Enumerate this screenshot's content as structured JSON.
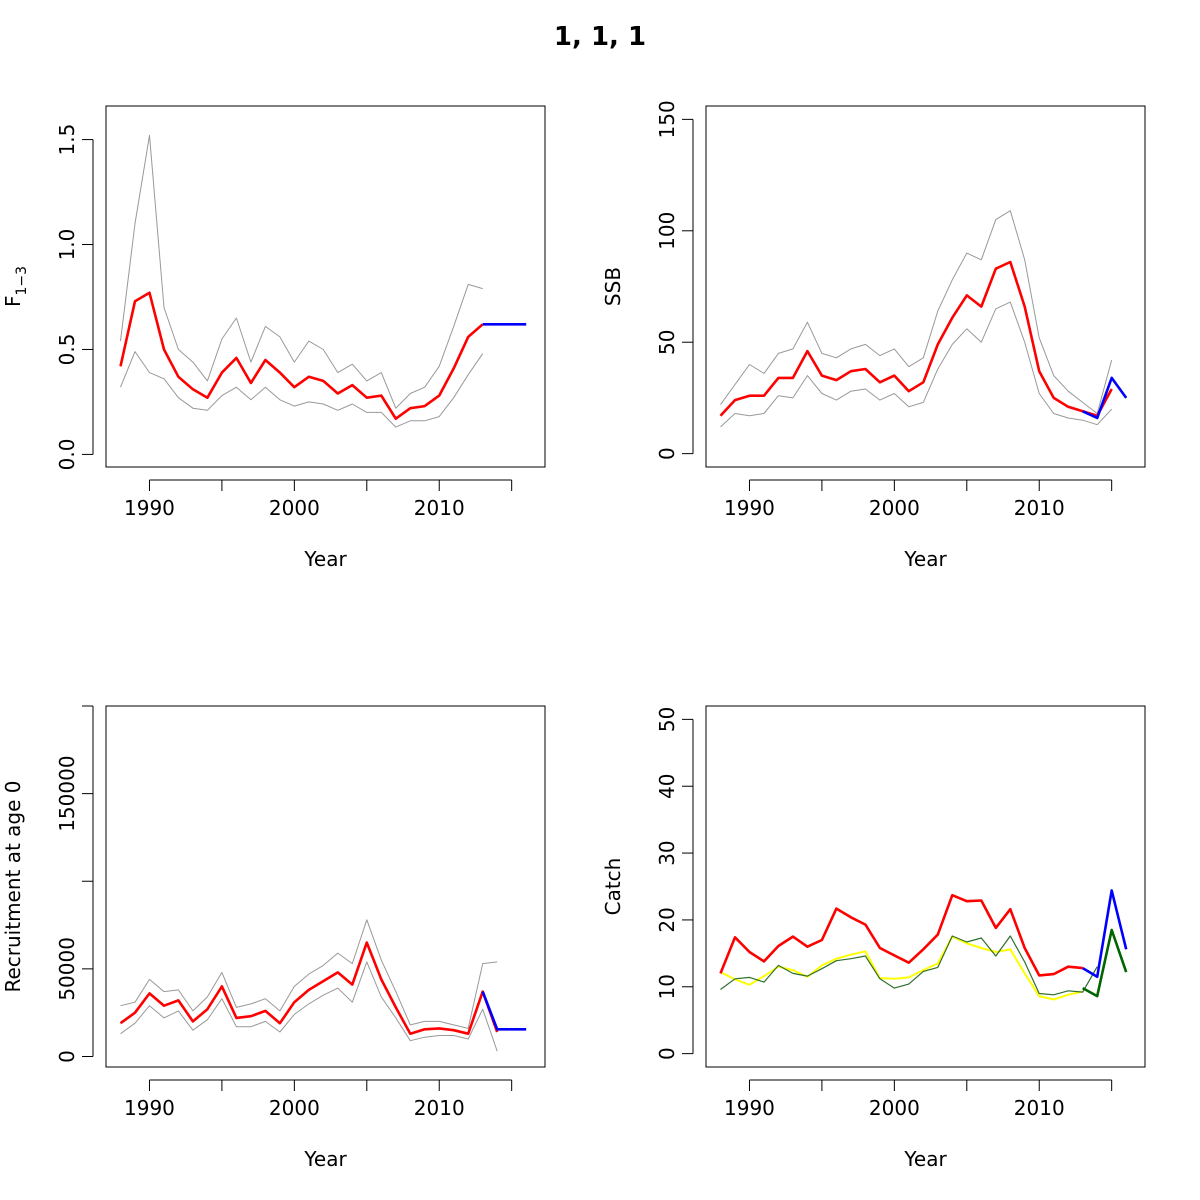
{
  "title": "1, 1, 1",
  "chart_data": [
    {
      "type": "line",
      "ylabel_main": "F",
      "ylabel_sub": "1−3",
      "xlabel": "Year",
      "xlim": [
        1987,
        2017.3
      ],
      "ylim": [
        -0.06,
        1.66
      ],
      "xticks": [
        1990,
        2000,
        2010
      ],
      "xtick_marks": [
        1990,
        1995,
        2000,
        2005,
        2010,
        2015
      ],
      "yticks": [
        0.0,
        0.5,
        1.0,
        1.5
      ],
      "ytick_labels": [
        "0.0",
        "0.5",
        "1.0",
        "1.5"
      ],
      "series": [
        {
          "color": "#999999",
          "width": 1,
          "x": [
            1988,
            1989,
            1990,
            1991,
            1992,
            1993,
            1994,
            1995,
            1996,
            1997,
            1998,
            1999,
            2000,
            2001,
            2002,
            2003,
            2004,
            2005,
            2006,
            2007,
            2008,
            2009,
            2010,
            2011,
            2012,
            2013
          ],
          "y": [
            0.54,
            1.1,
            1.52,
            0.7,
            0.5,
            0.44,
            0.35,
            0.55,
            0.65,
            0.44,
            0.61,
            0.56,
            0.44,
            0.54,
            0.5,
            0.39,
            0.43,
            0.35,
            0.39,
            0.22,
            0.29,
            0.32,
            0.42,
            0.61,
            0.81,
            0.79
          ]
        },
        {
          "color": "#999999",
          "width": 1,
          "x": [
            1988,
            1989,
            1990,
            1991,
            1992,
            1993,
            1994,
            1995,
            1996,
            1997,
            1998,
            1999,
            2000,
            2001,
            2002,
            2003,
            2004,
            2005,
            2006,
            2007,
            2008,
            2009,
            2010,
            2011,
            2012,
            2013
          ],
          "y": [
            0.32,
            0.49,
            0.39,
            0.36,
            0.27,
            0.22,
            0.21,
            0.28,
            0.32,
            0.26,
            0.32,
            0.26,
            0.23,
            0.25,
            0.24,
            0.21,
            0.24,
            0.2,
            0.2,
            0.13,
            0.16,
            0.16,
            0.18,
            0.27,
            0.38,
            0.48
          ]
        },
        {
          "color": "#ff0000",
          "width": 2.6,
          "x": [
            1988,
            1989,
            1990,
            1991,
            1992,
            1993,
            1994,
            1995,
            1996,
            1997,
            1998,
            1999,
            2000,
            2001,
            2002,
            2003,
            2004,
            2005,
            2006,
            2007,
            2008,
            2009,
            2010,
            2011,
            2012,
            2013
          ],
          "y": [
            0.42,
            0.73,
            0.77,
            0.5,
            0.37,
            0.31,
            0.27,
            0.39,
            0.46,
            0.34,
            0.45,
            0.39,
            0.32,
            0.37,
            0.35,
            0.29,
            0.33,
            0.27,
            0.28,
            0.17,
            0.22,
            0.23,
            0.28,
            0.41,
            0.56,
            0.62
          ]
        },
        {
          "color": "#0000ff",
          "width": 2.6,
          "x": [
            2013,
            2014,
            2015,
            2016
          ],
          "y": [
            0.62,
            0.62,
            0.62,
            0.62
          ]
        }
      ]
    },
    {
      "type": "line",
      "ylabel_main": "SSB",
      "ylabel_sub": "",
      "xlabel": "Year",
      "xlim": [
        1987,
        2017.3
      ],
      "ylim": [
        -6,
        156
      ],
      "xticks": [
        1990,
        2000,
        2010
      ],
      "xtick_marks": [
        1990,
        1995,
        2000,
        2005,
        2010,
        2015
      ],
      "yticks": [
        0,
        50,
        100,
        150
      ],
      "ytick_labels": [
        "0",
        "50",
        "100",
        "150"
      ],
      "series": [
        {
          "color": "#999999",
          "width": 1,
          "x": [
            1988,
            1989,
            1990,
            1991,
            1992,
            1993,
            1994,
            1995,
            1996,
            1997,
            1998,
            1999,
            2000,
            2001,
            2002,
            2003,
            2004,
            2005,
            2006,
            2007,
            2008,
            2009,
            2010,
            2011,
            2012,
            2013,
            2014,
            2015
          ],
          "y": [
            22,
            31,
            40,
            36,
            45,
            47,
            59,
            45,
            43,
            47,
            49,
            44,
            47,
            39,
            43,
            64,
            78,
            90,
            87,
            105,
            109,
            87,
            52,
            35,
            28,
            23,
            18,
            42
          ]
        },
        {
          "color": "#999999",
          "width": 1,
          "x": [
            1988,
            1989,
            1990,
            1991,
            1992,
            1993,
            1994,
            1995,
            1996,
            1997,
            1998,
            1999,
            2000,
            2001,
            2002,
            2003,
            2004,
            2005,
            2006,
            2007,
            2008,
            2009,
            2010,
            2011,
            2012,
            2013,
            2014,
            2015
          ],
          "y": [
            12,
            18,
            17,
            18,
            26,
            25,
            35,
            27,
            24,
            28,
            29,
            24,
            27,
            21,
            23,
            38,
            49,
            56,
            50,
            65,
            68,
            50,
            27,
            18,
            16,
            15,
            13,
            20
          ]
        },
        {
          "color": "#ff0000",
          "width": 2.6,
          "x": [
            1988,
            1989,
            1990,
            1991,
            1992,
            1993,
            1994,
            1995,
            1996,
            1997,
            1998,
            1999,
            2000,
            2001,
            2002,
            2003,
            2004,
            2005,
            2006,
            2007,
            2008,
            2009,
            2010,
            2011,
            2012,
            2013,
            2014,
            2015
          ],
          "y": [
            17,
            24,
            26,
            26,
            34,
            34,
            46,
            35,
            33,
            37,
            38,
            32,
            35,
            28,
            32,
            49,
            61,
            71,
            66,
            83,
            86,
            66,
            37,
            25,
            21,
            19,
            17,
            29
          ]
        },
        {
          "color": "#0000ff",
          "width": 2.6,
          "x": [
            2013,
            2014,
            2015,
            2016
          ],
          "y": [
            19,
            16,
            34,
            25
          ]
        }
      ]
    },
    {
      "type": "line",
      "ylabel_main": "Recruitment at age 0",
      "ylabel_sub": "",
      "xlabel": "Year",
      "xlim": [
        1987,
        2017.3
      ],
      "ylim": [
        -6000,
        200000
      ],
      "xticks": [
        1990,
        2000,
        2010
      ],
      "xtick_marks": [
        1990,
        1995,
        2000,
        2005,
        2010,
        2015
      ],
      "yticks": [
        0,
        50000,
        100000,
        150000,
        200000
      ],
      "ytick_labels": [
        "0",
        "50000",
        "",
        "150000",
        ""
      ],
      "series": [
        {
          "color": "#999999",
          "width": 1,
          "x": [
            1988,
            1989,
            1990,
            1991,
            1992,
            1993,
            1994,
            1995,
            1996,
            1997,
            1998,
            1999,
            2000,
            2001,
            2002,
            2003,
            2004,
            2005,
            2006,
            2007,
            2008,
            2009,
            2010,
            2011,
            2012,
            2013,
            2014
          ],
          "y": [
            29000,
            31000,
            44000,
            37000,
            38000,
            26000,
            34000,
            48000,
            28000,
            30000,
            33000,
            26000,
            40000,
            47000,
            52000,
            59000,
            53000,
            78000,
            55000,
            37000,
            18000,
            20000,
            20000,
            18000,
            16000,
            53000,
            54000
          ]
        },
        {
          "color": "#999999",
          "width": 1,
          "x": [
            1988,
            1989,
            1990,
            1991,
            1992,
            1993,
            1994,
            1995,
            1996,
            1997,
            1998,
            1999,
            2000,
            2001,
            2002,
            2003,
            2004,
            2005,
            2006,
            2007,
            2008,
            2009,
            2010,
            2011,
            2012,
            2013,
            2014
          ],
          "y": [
            13000,
            19000,
            29000,
            22000,
            26000,
            15000,
            21000,
            33000,
            17000,
            17000,
            20000,
            14000,
            24000,
            30000,
            35000,
            39000,
            31000,
            54000,
            34000,
            22000,
            9000,
            11000,
            12000,
            12000,
            10000,
            27000,
            3000
          ]
        },
        {
          "color": "#ff0000",
          "width": 2.6,
          "x": [
            1988,
            1989,
            1990,
            1991,
            1992,
            1993,
            1994,
            1995,
            1996,
            1997,
            1998,
            1999,
            2000,
            2001,
            2002,
            2003,
            2004,
            2005,
            2006,
            2007,
            2008,
            2009,
            2010,
            2011,
            2012,
            2013,
            2014
          ],
          "y": [
            19000,
            25000,
            36000,
            29000,
            32000,
            20000,
            27000,
            40000,
            22000,
            23000,
            26000,
            19000,
            31000,
            38000,
            43000,
            48000,
            41000,
            65000,
            44000,
            28000,
            13000,
            15500,
            16000,
            15000,
            13000,
            37000,
            14000
          ]
        },
        {
          "color": "#0000ff",
          "width": 2.6,
          "x": [
            2013,
            2014,
            2015,
            2016
          ],
          "y": [
            37000,
            15500,
            15500,
            15500
          ]
        }
      ]
    },
    {
      "type": "line",
      "ylabel_main": "Catch",
      "ylabel_sub": "",
      "xlabel": "Year",
      "xlim": [
        1987,
        2017.3
      ],
      "ylim": [
        -2,
        52
      ],
      "xticks": [
        1990,
        2000,
        2010
      ],
      "xtick_marks": [
        1990,
        1995,
        2000,
        2005,
        2010,
        2015
      ],
      "yticks": [
        0,
        10,
        20,
        30,
        40,
        50
      ],
      "ytick_labels": [
        "0",
        "10",
        "20",
        "30",
        "40",
        "50"
      ],
      "series": [
        {
          "color": "#ffff00",
          "width": 2,
          "x": [
            1988,
            1989,
            1990,
            1991,
            1992,
            1993,
            1994,
            1995,
            1996,
            1997,
            1998,
            1999,
            2000,
            2001,
            2002,
            2003,
            2004,
            2005,
            2006,
            2007,
            2008,
            2009,
            2010,
            2011,
            2012,
            2013
          ],
          "y": [
            12.2,
            11.1,
            10.3,
            11.6,
            13.0,
            12.5,
            11.5,
            13.2,
            14.2,
            14.8,
            15.3,
            11.3,
            11.2,
            11.4,
            12.5,
            13.5,
            17.5,
            16.5,
            15.8,
            15.2,
            15.6,
            12.0,
            8.6,
            8.1,
            8.8,
            9.3
          ]
        },
        {
          "color": "#2f6e2f",
          "width": 1.2,
          "x": [
            1988,
            1989,
            1990,
            1991,
            1992,
            1993,
            1994,
            1995,
            1996,
            1997,
            1998,
            1999,
            2000,
            2001,
            2002,
            2003,
            2004,
            2005,
            2006,
            2007,
            2008,
            2009,
            2010,
            2011,
            2012,
            2013,
            2014
          ],
          "y": [
            9.6,
            11.2,
            11.4,
            10.7,
            13.2,
            12.0,
            11.6,
            12.7,
            13.9,
            14.2,
            14.6,
            11.2,
            9.8,
            10.4,
            12.3,
            12.9,
            17.6,
            16.7,
            17.3,
            14.6,
            17.6,
            13.7,
            9.0,
            8.8,
            9.4,
            9.2,
            13.0
          ]
        },
        {
          "color": "#ff0000",
          "width": 2.6,
          "x": [
            1988,
            1989,
            1990,
            1991,
            1992,
            1993,
            1994,
            1995,
            1996,
            1997,
            1998,
            1999,
            2000,
            2001,
            2002,
            2003,
            2004,
            2005,
            2006,
            2007,
            2008,
            2009,
            2010,
            2011,
            2012,
            2013
          ],
          "y": [
            12.0,
            17.4,
            15.2,
            13.8,
            16.1,
            17.5,
            16.0,
            17.0,
            21.7,
            20.4,
            19.3,
            15.8,
            14.7,
            13.6,
            15.6,
            17.8,
            23.7,
            22.8,
            22.9,
            18.8,
            21.6,
            15.8,
            11.7,
            11.9,
            13.0,
            12.8
          ]
        },
        {
          "color": "#0000ff",
          "width": 2.6,
          "x": [
            2013,
            2014,
            2015,
            2016
          ],
          "y": [
            12.8,
            11.5,
            24.4,
            15.6
          ]
        },
        {
          "color": "#006400",
          "width": 2.6,
          "x": [
            2013,
            2014,
            2015,
            2016
          ],
          "y": [
            9.8,
            8.6,
            18.5,
            12.2
          ]
        }
      ]
    }
  ]
}
